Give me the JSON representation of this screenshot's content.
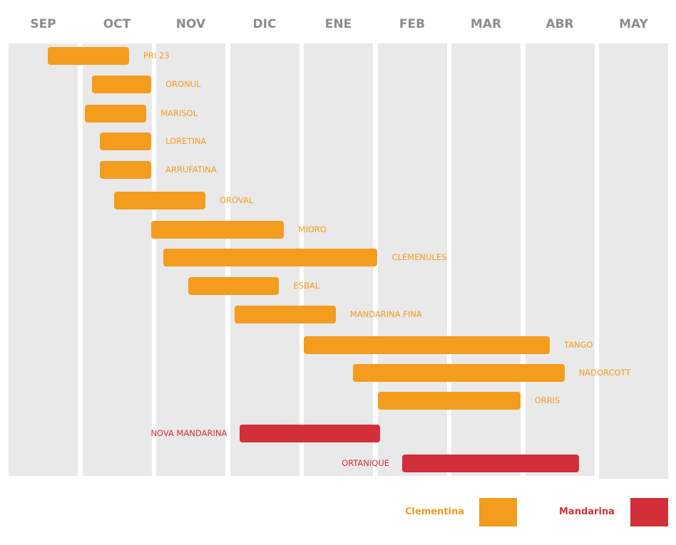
{
  "chart_data": {
    "type": "gantt",
    "months": [
      "SEP",
      "OCT",
      "NOV",
      "DIC",
      "ENE",
      "FEB",
      "MAR",
      "ABR",
      "MAY"
    ],
    "grid": true,
    "legend_placement": "bottom-right",
    "legend": [
      {
        "name": "Clementina",
        "color": "#f39c1e"
      },
      {
        "name": "Mandarina",
        "color": "#d22f38"
      }
    ],
    "tasks": [
      {
        "name": "PRI 23",
        "group": "Clementina",
        "start": "SEP 17",
        "end": "OCT 20"
      },
      {
        "name": "ORONUL",
        "group": "Clementina",
        "start": "OCT 5",
        "end": "OCT 29"
      },
      {
        "name": "MARISOL",
        "group": "Clementina",
        "start": "OCT 2",
        "end": "OCT 27"
      },
      {
        "name": "LORETINA",
        "group": "Clementina",
        "start": "OCT 8",
        "end": "OCT 29"
      },
      {
        "name": "ARRUFATINA",
        "group": "Clementina",
        "start": "OCT 8",
        "end": "OCT 29"
      },
      {
        "name": "OROVAL",
        "group": "Clementina",
        "start": "OCT 14",
        "end": "NOV 21"
      },
      {
        "name": "MIORO",
        "group": "Clementina",
        "start": "OCT 29",
        "end": "DIC 23"
      },
      {
        "name": "CLEMENULES",
        "group": "Clementina",
        "start": "NOV 4",
        "end": "FEB 1"
      },
      {
        "name": "ESBAL",
        "group": "Clementina",
        "start": "NOV 14",
        "end": "DIC 21"
      },
      {
        "name": "MANDARINA FINA",
        "group": "Clementina",
        "start": "DIC 3",
        "end": "ENE 14"
      },
      {
        "name": "TANGO",
        "group": "Clementina",
        "start": "ENE 1",
        "end": "ABR 11"
      },
      {
        "name": "NADORCOTT",
        "group": "Clementina",
        "start": "ENE 21",
        "end": "ABR 17"
      },
      {
        "name": "ORRIS",
        "group": "Clementina",
        "start": "FEB 1",
        "end": "MAR 29"
      },
      {
        "name": "NOVA MANDARINA",
        "group": "Mandarina",
        "start": "DIC 5",
        "end": "FEB 2"
      },
      {
        "name": "ORTANIQUE",
        "group": "Mandarina",
        "start": "FEB 11",
        "end": "ABR 23"
      }
    ]
  }
}
